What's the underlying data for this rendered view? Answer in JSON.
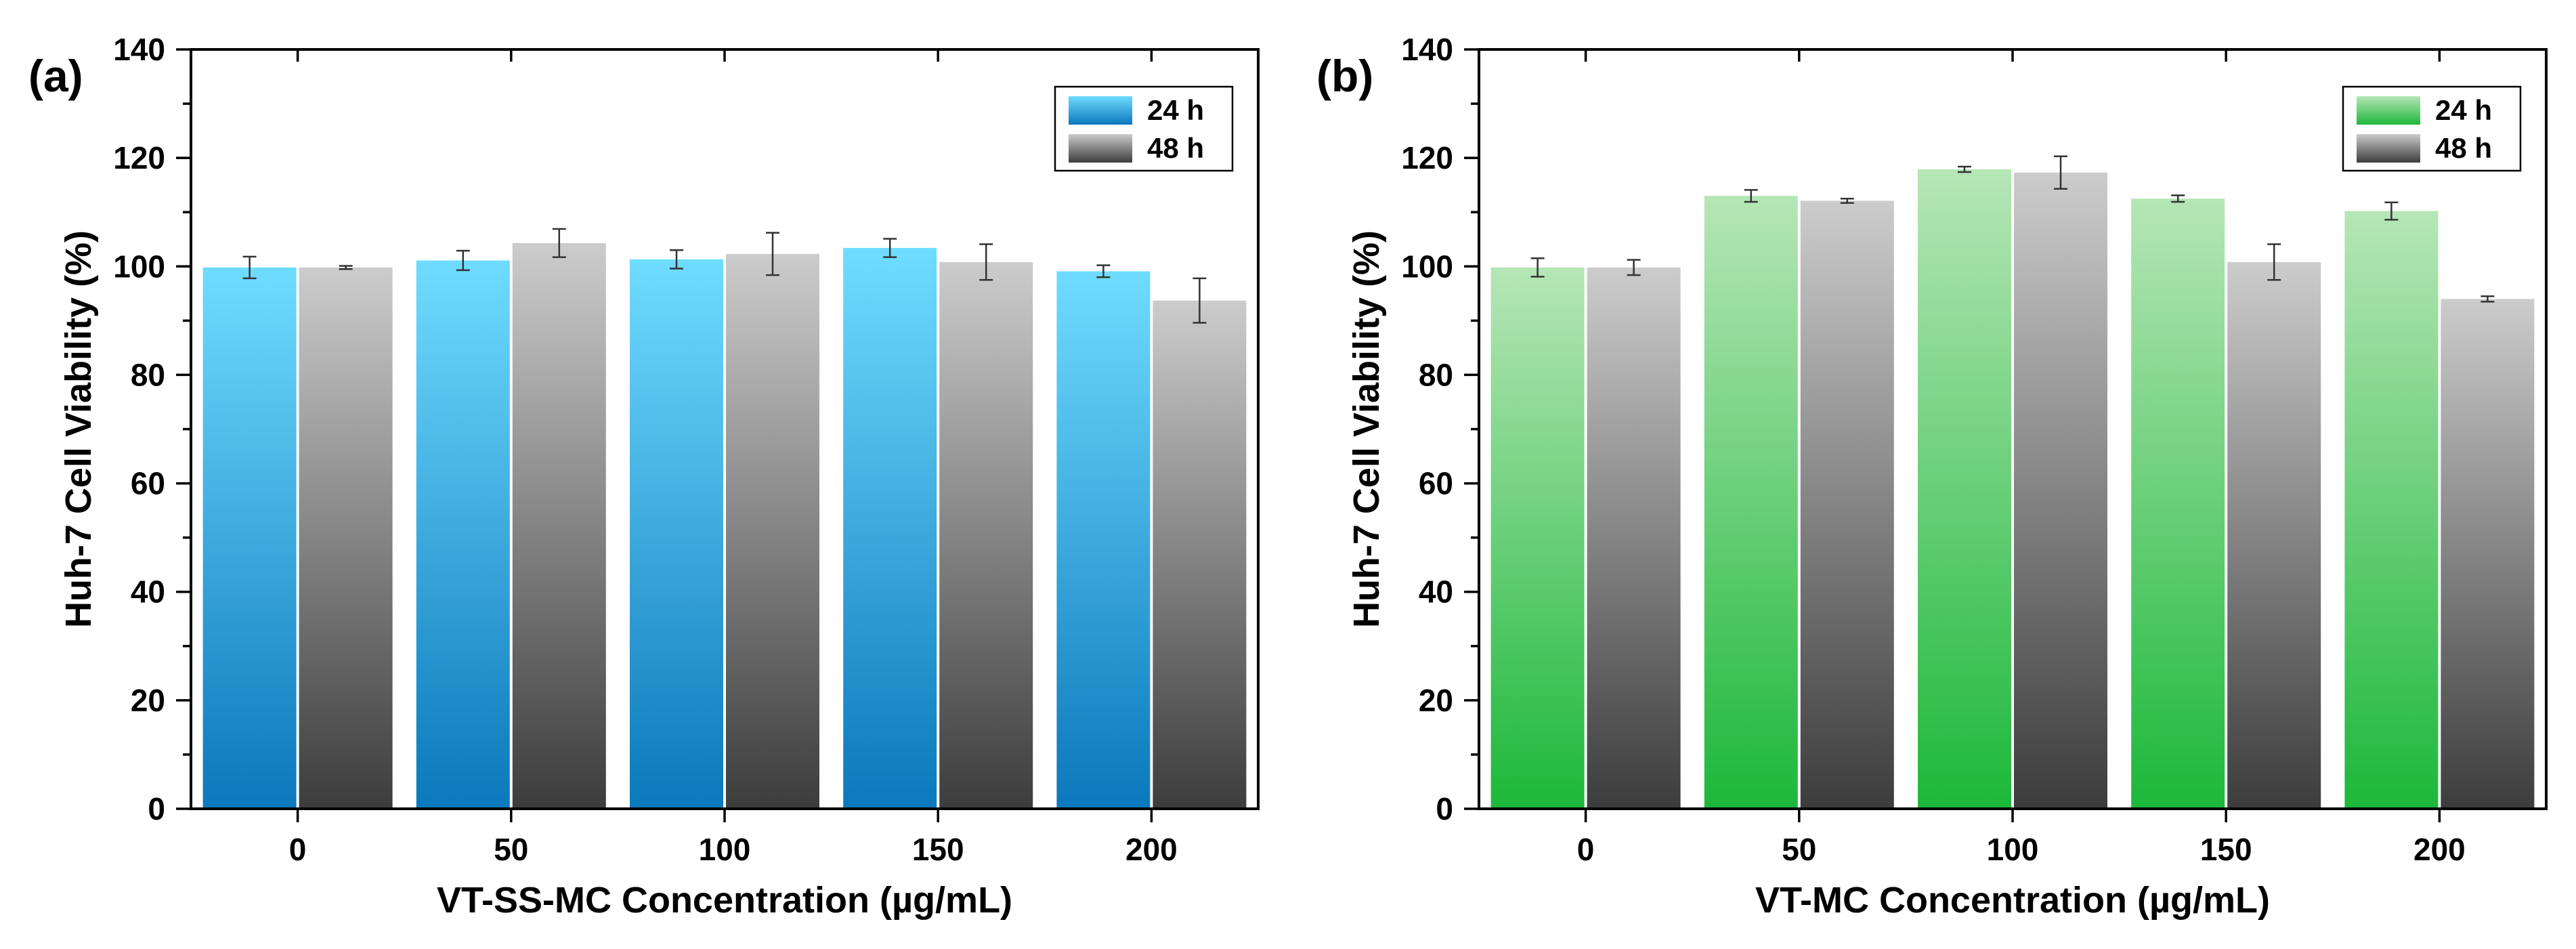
{
  "chart_data": [
    {
      "type": "bar",
      "panel_label": "(a)",
      "title": "",
      "xlabel": "VT-SS-MC Concentration (µg/mL)",
      "ylabel": "Huh-7 Cell Viability (%)",
      "categories": [
        "0",
        "50",
        "100",
        "150",
        "200"
      ],
      "ylim": [
        0,
        140
      ],
      "yticks": [
        "0",
        "20",
        "40",
        "60",
        "80",
        "100",
        "120",
        "140"
      ],
      "legend_position": "top-right",
      "series": [
        {
          "name": "24 h",
          "values": [
            99.8,
            101.1,
            101.3,
            103.4,
            99.1
          ],
          "errors": [
            2.0,
            1.8,
            1.7,
            1.7,
            1.1
          ],
          "color_top": "#6fdcff",
          "color_bottom": "#0a78bb"
        },
        {
          "name": "48 h",
          "values": [
            99.8,
            104.3,
            102.3,
            100.8,
            93.7
          ],
          "errors": [
            0.3,
            2.6,
            3.9,
            3.3,
            4.1
          ],
          "color_top": "#cccccc",
          "color_bottom": "#3c3c3c"
        }
      ]
    },
    {
      "type": "bar",
      "panel_label": "(b)",
      "title": "",
      "xlabel": "VT-MC Concentration (µg/mL)",
      "ylabel": "Huh-7 Cell Viability (%)",
      "categories": [
        "0",
        "50",
        "100",
        "150",
        "200"
      ],
      "ylim": [
        0,
        140
      ],
      "yticks": [
        "0",
        "20",
        "40",
        "60",
        "80",
        "100",
        "120",
        "140"
      ],
      "legend_position": "top-right",
      "series": [
        {
          "name": "24 h",
          "values": [
            99.8,
            113.0,
            117.9,
            112.5,
            110.2
          ],
          "errors": [
            1.7,
            1.1,
            0.5,
            0.6,
            1.6
          ],
          "color_top": "#b6e6b6",
          "color_bottom": "#1cb83a"
        },
        {
          "name": "48 h",
          "values": [
            99.8,
            112.1,
            117.3,
            100.8,
            94.0
          ],
          "errors": [
            1.4,
            0.4,
            3.0,
            3.3,
            0.5
          ],
          "color_top": "#cccccc",
          "color_bottom": "#3c3c3c"
        }
      ]
    }
  ]
}
